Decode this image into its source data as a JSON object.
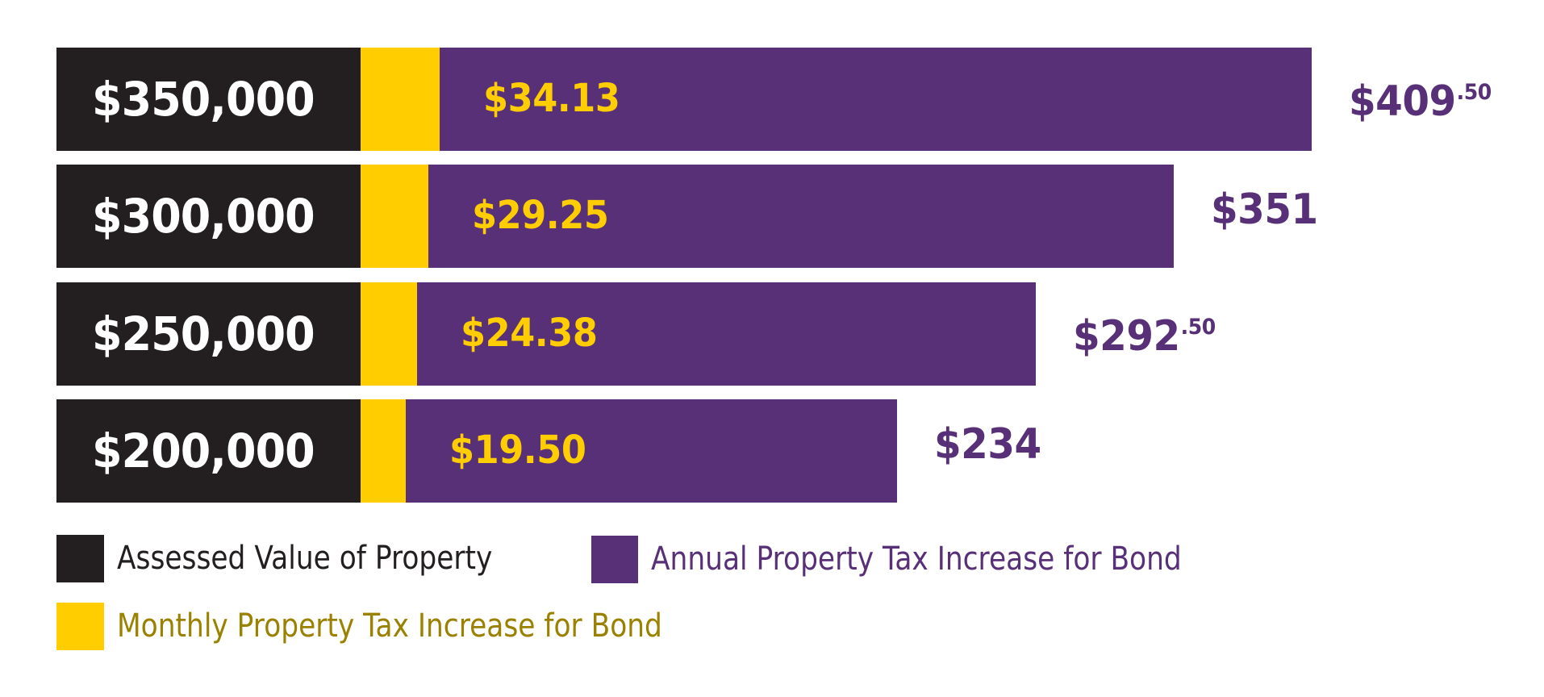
{
  "colors": {
    "assessed": "#231f20",
    "monthly": "#ffcd00",
    "annual": "#583078",
    "monthly_legend_text": "#9b8100",
    "assessed_legend_text": "#231f20",
    "annual_legend_text": "#583078"
  },
  "chart_data": {
    "type": "bar",
    "orientation": "horizontal",
    "stacked": true,
    "title": "",
    "xlabel": "",
    "ylabel": "",
    "grid": false,
    "legend_position": "bottom-left",
    "categories": [
      "$350,000",
      "$300,000",
      "$250,000",
      "$200,000"
    ],
    "series": [
      {
        "name": "Assessed Value of Property",
        "values": [
          350000,
          300000,
          250000,
          200000
        ],
        "labels": [
          "$350,000",
          "$300,000",
          "$250,000",
          "$200,000"
        ]
      },
      {
        "name": "Monthly Property Tax Increase for Bond",
        "values": [
          34.13,
          29.25,
          24.38,
          19.5
        ],
        "labels": [
          "$34.13",
          "$29.25",
          "$24.38",
          "$19.50"
        ]
      },
      {
        "name": "Annual Property Tax Increase for Bond",
        "values": [
          409.5,
          351,
          292.5,
          234
        ],
        "labels": [
          {
            "main": "$409",
            "cents": ".50"
          },
          {
            "main": "$351",
            "cents": ""
          },
          {
            "main": "$292",
            "cents": ".50"
          },
          {
            "main": "$234",
            "cents": ""
          }
        ]
      }
    ]
  },
  "legend": [
    {
      "label": "Assessed Value of Property",
      "key": "assessed"
    },
    {
      "label": "Annual Property Tax Increase for Bond",
      "key": "annual"
    },
    {
      "label": "Monthly Property Tax Increase for Bond",
      "key": "monthly"
    }
  ]
}
